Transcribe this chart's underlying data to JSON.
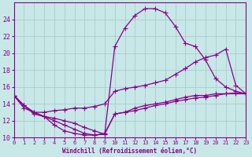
{
  "bg_color": "#c8e8e8",
  "line_color": "#880088",
  "grid_color": "#a8cccc",
  "xlabel": "Windchill (Refroidissement éolien,°C)",
  "xlim": [
    0,
    23
  ],
  "ylim": [
    10,
    26
  ],
  "yticks": [
    10,
    12,
    14,
    16,
    18,
    20,
    22,
    24
  ],
  "xticks": [
    0,
    1,
    2,
    3,
    4,
    5,
    6,
    7,
    8,
    9,
    10,
    11,
    12,
    13,
    14,
    15,
    16,
    17,
    18,
    19,
    20,
    21,
    22,
    23
  ],
  "curves": [
    {
      "x": [
        0,
        1,
        2,
        3,
        4,
        5,
        6,
        7,
        8,
        9,
        10,
        11,
        12,
        13,
        14,
        15,
        16,
        17,
        18,
        19,
        20,
        21,
        22,
        23
      ],
      "y": [
        15.0,
        13.8,
        13.0,
        12.5,
        12.0,
        11.5,
        11.0,
        10.5,
        10.3,
        10.4,
        20.8,
        23.0,
        24.5,
        25.3,
        25.3,
        24.8,
        23.2,
        21.2,
        20.8,
        19.2,
        17.0,
        16.0,
        15.5,
        15.2
      ]
    },
    {
      "x": [
        0,
        1,
        2,
        3,
        4,
        5,
        6,
        7,
        8,
        9,
        10,
        11,
        12,
        13,
        14,
        15,
        16,
        17,
        18,
        19,
        20,
        21,
        22,
        23
      ],
      "y": [
        15.0,
        13.8,
        13.0,
        13.0,
        13.2,
        13.3,
        13.5,
        13.5,
        13.7,
        14.0,
        15.5,
        15.8,
        16.0,
        16.2,
        16.5,
        16.8,
        17.5,
        18.2,
        19.0,
        19.5,
        19.8,
        20.5,
        16.2,
        15.2
      ]
    },
    {
      "x": [
        0,
        1,
        2,
        3,
        4,
        5,
        6,
        7,
        8,
        9,
        10,
        11,
        12,
        13,
        14,
        15,
        16,
        17,
        18,
        19,
        20,
        21,
        22,
        23
      ],
      "y": [
        15.0,
        13.5,
        13.0,
        12.5,
        12.3,
        12.0,
        11.7,
        11.2,
        10.8,
        10.4,
        12.8,
        13.0,
        13.2,
        13.5,
        13.8,
        14.0,
        14.3,
        14.5,
        14.7,
        14.8,
        15.0,
        15.2,
        15.2,
        15.2
      ]
    },
    {
      "x": [
        0,
        1,
        2,
        3,
        4,
        5,
        6,
        7,
        8,
        9,
        10,
        11,
        12,
        13,
        14,
        15,
        16,
        17,
        18,
        19,
        20,
        21,
        22,
        23
      ],
      "y": [
        15.0,
        13.8,
        12.8,
        12.5,
        11.5,
        10.8,
        10.5,
        10.3,
        10.3,
        10.5,
        12.8,
        13.0,
        13.5,
        13.8,
        14.0,
        14.2,
        14.5,
        14.8,
        15.0,
        15.0,
        15.2,
        15.2,
        15.3,
        15.2
      ]
    }
  ]
}
